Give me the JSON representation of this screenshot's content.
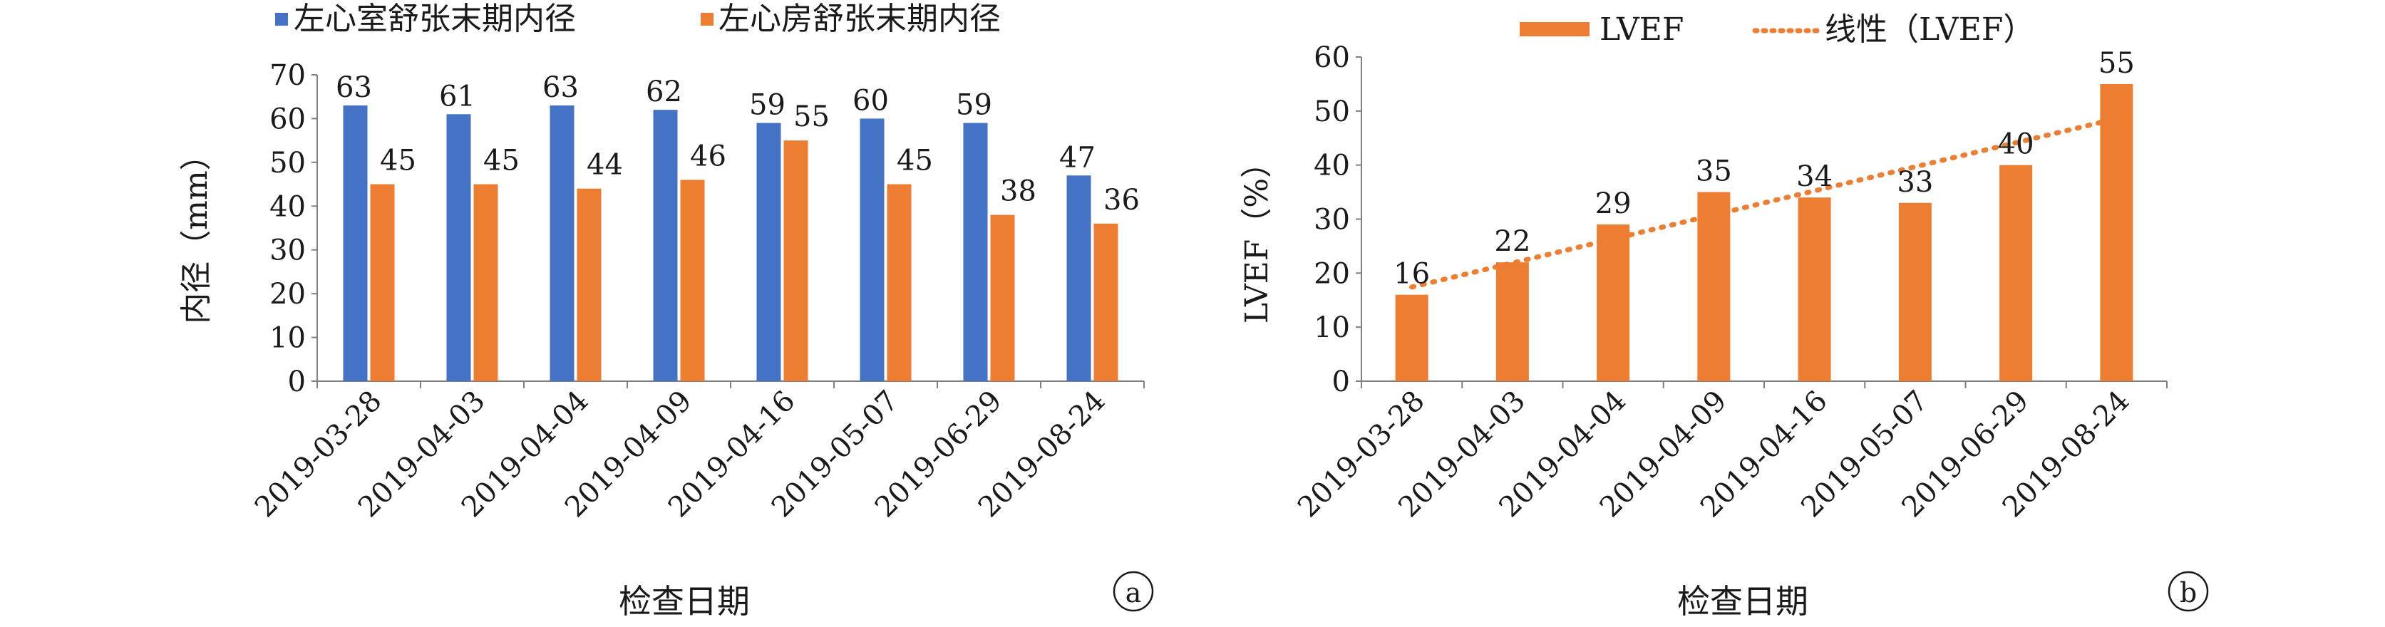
{
  "colors": {
    "lv": "#4472C4",
    "la": "#ED7D31",
    "lvef": "#ED7D31",
    "trend": "#ED7D31",
    "axis": "#7f7f7f"
  },
  "chart_data": [
    {
      "type": "bar",
      "panel_label": "a",
      "categories": [
        "2019-03-28",
        "2019-04-03",
        "2019-04-04",
        "2019-04-09",
        "2019-04-16",
        "2019-05-07",
        "2019-06-29",
        "2019-08-24"
      ],
      "series": [
        {
          "name": "左心室舒张末期内径",
          "values": [
            63,
            61,
            63,
            62,
            59,
            60,
            59,
            47
          ]
        },
        {
          "name": "左心房舒张末期内径",
          "values": [
            45,
            45,
            44,
            46,
            55,
            45,
            38,
            36
          ]
        }
      ],
      "xlabel": "检查日期",
      "ylabel": "内径（mm）",
      "ylim": [
        0,
        70
      ],
      "yticks": [
        0,
        10,
        20,
        30,
        40,
        50,
        60,
        70
      ],
      "legend_position": "top",
      "grid": false
    },
    {
      "type": "bar",
      "panel_label": "b",
      "categories": [
        "2019-03-28",
        "2019-04-03",
        "2019-04-04",
        "2019-04-09",
        "2019-04-16",
        "2019-05-07",
        "2019-06-29",
        "2019-08-24"
      ],
      "series": [
        {
          "name": "LVEF",
          "values": [
            16,
            22,
            29,
            35,
            34,
            33,
            40,
            55
          ]
        }
      ],
      "trendline": {
        "name": "线性（LVEF）",
        "kind": "linear"
      },
      "xlabel": "检查日期",
      "ylabel": "LVEF（%）",
      "ylim": [
        0,
        60
      ],
      "yticks": [
        0,
        10,
        20,
        30,
        40,
        50,
        60
      ],
      "legend_position": "top",
      "grid": false
    }
  ]
}
